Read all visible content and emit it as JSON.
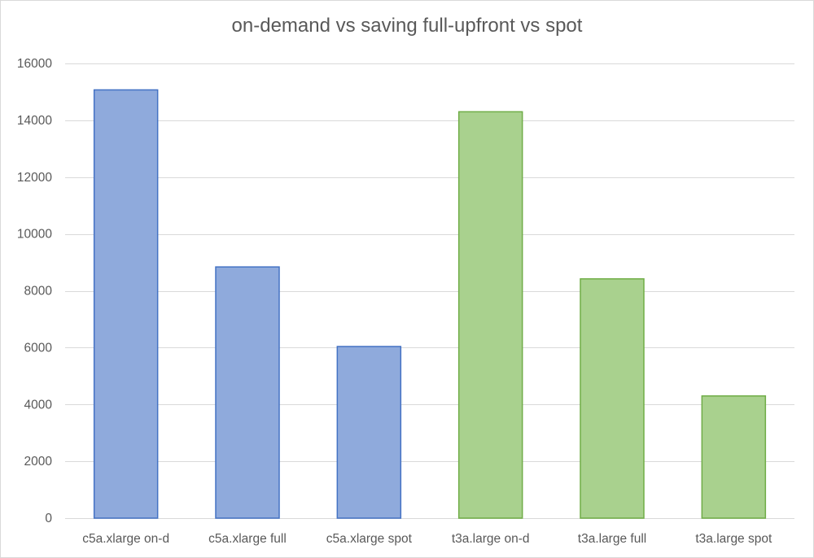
{
  "chart_data": {
    "type": "bar",
    "title": "on-demand vs saving full-upfront vs spot",
    "xlabel": "",
    "ylabel": "",
    "ylim": [
      0,
      16000
    ],
    "yticks": [
      0,
      2000,
      4000,
      6000,
      8000,
      10000,
      12000,
      14000,
      16000
    ],
    "grid": true,
    "legend": "none",
    "categories": [
      "c5a.xlarge on-d",
      "c5a.xlarge full",
      "c5a.xlarge spot",
      "t3a.large on-d",
      "t3a.large full",
      "t3a.large spot"
    ],
    "values": [
      15070,
      8840,
      6040,
      14300,
      8420,
      4300
    ],
    "bar_fill_colors": [
      "#8faadc",
      "#8faadc",
      "#8faadc",
      "#a9d18e",
      "#a9d18e",
      "#a9d18e"
    ],
    "bar_edge_colors": [
      "#4472c4",
      "#4472c4",
      "#4472c4",
      "#70ad47",
      "#70ad47",
      "#70ad47"
    ],
    "colors": {
      "gridline": "#d9d9d9",
      "text": "#595959",
      "border": "#d9d9d9"
    }
  }
}
